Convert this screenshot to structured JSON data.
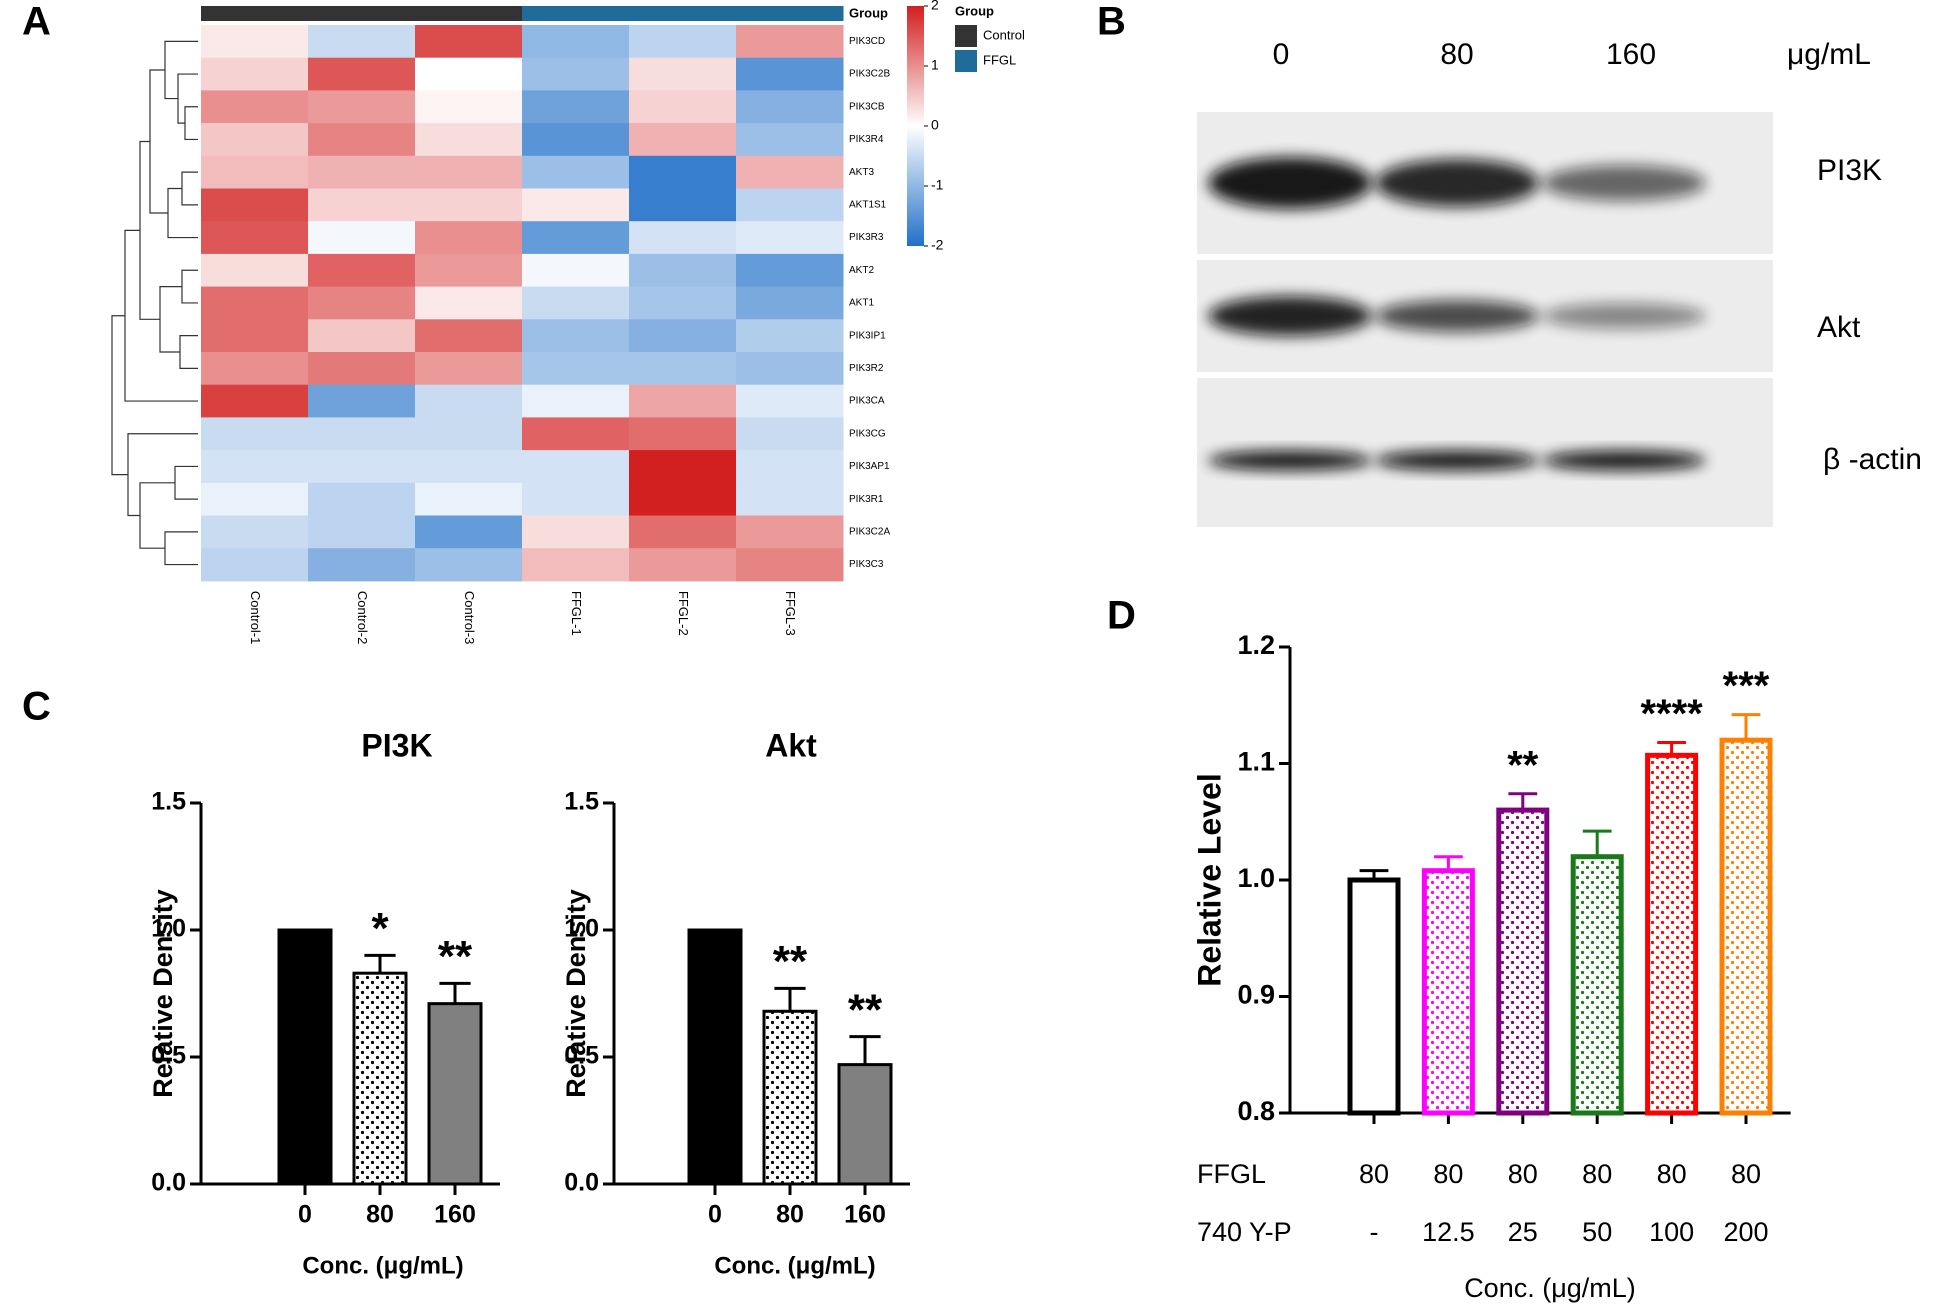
{
  "panels": [
    "A",
    "B",
    "C",
    "D"
  ],
  "chart_data": [
    {
      "type": "heatmap",
      "rows": [
        "PIK3CD",
        "PIK3C2B",
        "PIK3CB",
        "PIK3R4",
        "AKT3",
        "AKT1S1",
        "PIK3R3",
        "AKT2",
        "AKT1",
        "PIK3IP1",
        "PIK3R2",
        "PIK3CA",
        "PIK3CG",
        "PIK3AP1",
        "PIK3R1",
        "PIK3C2A",
        "PIK3C3"
      ],
      "columns": [
        "Control-1",
        "Control-2",
        "Control-3",
        "FFGL-1",
        "FFGL-2",
        "FFGL-3"
      ],
      "column_groups": [
        "Control",
        "Control",
        "Control",
        "FFGL",
        "FFGL",
        "FFGL"
      ],
      "values": [
        [
          0.2,
          -0.5,
          1.6,
          -1.0,
          -0.6,
          0.9
        ],
        [
          0.4,
          1.5,
          0.0,
          -0.9,
          0.3,
          -1.5
        ],
        [
          1.0,
          0.9,
          0.1,
          -1.3,
          0.4,
          -1.1
        ],
        [
          0.5,
          1.1,
          0.3,
          -1.5,
          0.7,
          -0.9
        ],
        [
          0.6,
          0.7,
          0.7,
          -0.9,
          -1.8,
          0.7
        ],
        [
          1.6,
          0.4,
          0.4,
          0.2,
          -1.8,
          -0.6
        ],
        [
          1.5,
          -0.1,
          1.0,
          -1.4,
          -0.4,
          -0.3
        ],
        [
          0.3,
          1.4,
          0.9,
          -0.1,
          -0.9,
          -1.4
        ],
        [
          1.3,
          1.1,
          0.2,
          -0.5,
          -0.8,
          -1.2
        ],
        [
          1.3,
          0.5,
          1.3,
          -0.9,
          -1.1,
          -0.7
        ],
        [
          1.0,
          1.2,
          0.9,
          -0.8,
          -0.8,
          -0.9
        ],
        [
          1.7,
          -1.3,
          -0.5,
          -0.2,
          0.8,
          -0.3
        ],
        [
          -0.5,
          -0.5,
          -0.5,
          1.4,
          1.3,
          -0.5
        ],
        [
          -0.4,
          -0.4,
          -0.4,
          -0.4,
          2.0,
          -0.4
        ],
        [
          -0.2,
          -0.6,
          -0.2,
          -0.4,
          2.0,
          -0.4
        ],
        [
          -0.5,
          -0.6,
          -1.4,
          0.3,
          1.3,
          0.9
        ],
        [
          -0.6,
          -1.1,
          -0.9,
          0.6,
          0.9,
          1.1
        ]
      ],
      "colorbar": {
        "lim": [
          -2,
          2
        ],
        "ticks": [
          2,
          1,
          0,
          -1,
          -2
        ],
        "colors": [
          "#2170c8",
          "#ffffff",
          "#d21f1f"
        ]
      },
      "group": {
        "title": "Group",
        "names": [
          "Control",
          "FFGL"
        ],
        "colors": [
          "#333333",
          "#1f6b9a"
        ]
      }
    },
    {
      "type": "blot",
      "lanes": [
        0,
        80,
        160
      ],
      "unit": "μg/mL",
      "rows": [
        "PI3K",
        "Akt",
        "β -actin"
      ]
    },
    {
      "type": "bar",
      "title": "PI3K",
      "ylabel": "Relative Density",
      "xlabel": "Conc. (μg/mL)",
      "categories": [
        "0",
        "80",
        "160"
      ],
      "values": [
        1.0,
        0.83,
        0.71
      ],
      "errors": [
        0,
        0.07,
        0.08
      ],
      "annotations": [
        null,
        "*",
        "**"
      ],
      "colors": [
        "#000000",
        "#000000",
        "#808080"
      ],
      "patterns": [
        "solid",
        "dots",
        "solid"
      ],
      "edgecolor": "#000000",
      "ylim": [
        0,
        1.5
      ],
      "yticks": [
        {
          "value": 0,
          "label": "0.0"
        },
        0.5,
        {
          "value": 1,
          "label": "1.0"
        },
        1.5
      ]
    },
    {
      "type": "bar",
      "title": "Akt",
      "ylabel": "Relative Density",
      "xlabel": "Conc. (μg/mL)",
      "categories": [
        "0",
        "80",
        "160"
      ],
      "values": [
        1.0,
        0.68,
        0.47
      ],
      "errors": [
        0,
        0.09,
        0.11
      ],
      "annotations": [
        null,
        "**",
        "**"
      ],
      "colors": [
        "#000000",
        "#000000",
        "#808080"
      ],
      "patterns": [
        "solid",
        "dots",
        "solid"
      ],
      "edgecolor": "#000000",
      "ylim": [
        0,
        1.5
      ],
      "yticks": [
        {
          "value": 0,
          "label": "0.0"
        },
        0.5,
        {
          "value": 1,
          "label": "1.0"
        },
        1.5
      ]
    },
    {
      "type": "bar",
      "ylabel": "Relative Level",
      "xlabel": "Conc. (μg/mL)",
      "values": [
        1.0,
        1.008,
        1.06,
        1.02,
        1.107,
        1.12
      ],
      "errors": [
        0.008,
        0.012,
        0.014,
        0.022,
        0.011,
        0.022
      ],
      "annotations": [
        null,
        null,
        "**",
        null,
        "****",
        "***"
      ],
      "colors": [
        "#000000",
        "#ff00ff",
        "#800080",
        "#1a7a1a",
        "#ff0000",
        "#ff8000"
      ],
      "patterns": [
        "none",
        "dots",
        "dots",
        "dots",
        "dots",
        "dots"
      ],
      "table": [
        {
          "label": "FFGL",
          "cells": [
            80,
            80,
            80,
            80,
            80,
            80
          ]
        },
        {
          "label": "740 Y-P",
          "cells": [
            "-",
            12.5,
            25,
            50,
            100,
            200
          ]
        }
      ],
      "ylim": [
        0.8,
        1.2
      ],
      "yticks": [
        0.8,
        0.9,
        {
          "value": 1,
          "label": "1.0"
        },
        1.1,
        1.2
      ]
    }
  ]
}
